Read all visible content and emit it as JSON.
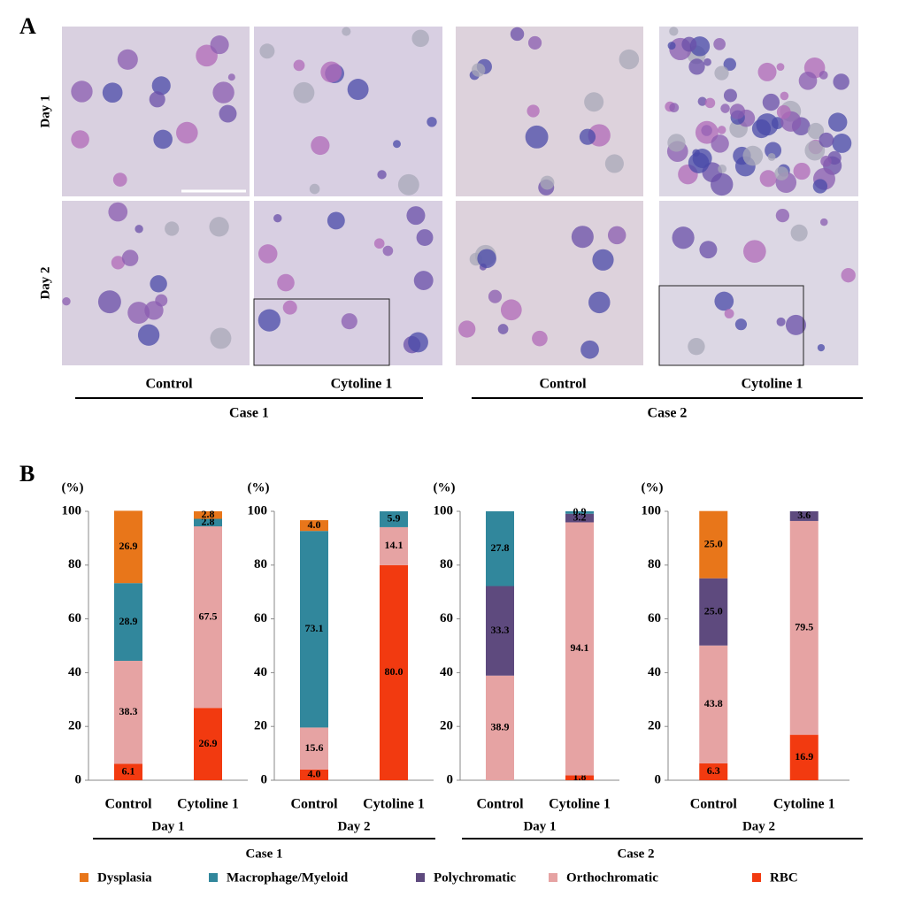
{
  "panel_a": {
    "label": "A",
    "rows": [
      "Day 1",
      "Day 2"
    ],
    "columns": [
      "Control",
      "Cytoline 1",
      "Control",
      "Cytoline 1"
    ],
    "cases": [
      "Case 1",
      "Case 2"
    ]
  },
  "panel_b": {
    "label": "B",
    "cases": [
      "Case 1",
      "Case 2"
    ]
  },
  "chart_data": [
    {
      "type": "stacked_bar",
      "group": "Day 1",
      "y_label": "(%)",
      "categories": [
        "Control",
        "Cytoline 1"
      ],
      "ylim": [
        0,
        100
      ],
      "yticks": [
        0,
        20,
        40,
        60,
        80,
        100
      ],
      "series": [
        {
          "name": "RBC",
          "color": "#f23a10",
          "values": [
            6.1,
            26.9
          ],
          "value_labels": [
            "6.1",
            "26.9"
          ]
        },
        {
          "name": "Orthochromatic",
          "color": "#e6a3a3",
          "values": [
            38.3,
            67.5
          ],
          "value_labels": [
            "38.3",
            "67.5"
          ]
        },
        {
          "name": "Polychromatic",
          "color": "#5e4a7e",
          "values": [
            null,
            null
          ],
          "value_labels": [
            null,
            null
          ]
        },
        {
          "name": "Macrophage/Myeloid",
          "color": "#31879c",
          "values": [
            28.9,
            2.8
          ],
          "value_labels": [
            "28.9",
            "2.8"
          ]
        },
        {
          "name": "Dysplasia",
          "color": "#e8761a",
          "values": [
            26.9,
            2.8
          ],
          "value_labels": [
            "26.9",
            "2.8"
          ]
        }
      ]
    },
    {
      "type": "stacked_bar",
      "group": "Day 2",
      "y_label": "(%)",
      "categories": [
        "Control",
        "Cytoline 1"
      ],
      "ylim": [
        0,
        100
      ],
      "yticks": [
        0,
        20,
        40,
        60,
        80,
        100
      ],
      "series": [
        {
          "name": "RBC",
          "color": "#f23a10",
          "values": [
            4.0,
            80.0
          ],
          "value_labels": [
            "4.0",
            "80.0"
          ]
        },
        {
          "name": "Orthochromatic",
          "color": "#e6a3a3",
          "values": [
            15.6,
            14.1
          ],
          "value_labels": [
            "15.6",
            "14.1"
          ]
        },
        {
          "name": "Polychromatic",
          "color": "#5e4a7e",
          "values": [
            null,
            null
          ],
          "value_labels": [
            null,
            null
          ]
        },
        {
          "name": "Macrophage/Myeloid",
          "color": "#31879c",
          "values": [
            73.1,
            5.9
          ],
          "value_labels": [
            "73.1",
            "5.9"
          ]
        },
        {
          "name": "Dysplasia",
          "color": "#e8761a",
          "values": [
            4.0,
            null
          ],
          "value_labels": [
            "4.0",
            null
          ]
        }
      ]
    },
    {
      "type": "stacked_bar",
      "group": "Day 1",
      "y_label": "(%)",
      "categories": [
        "Control",
        "Cytoline 1"
      ],
      "ylim": [
        0,
        100
      ],
      "yticks": [
        0,
        20,
        40,
        60,
        80,
        100
      ],
      "series": [
        {
          "name": "RBC",
          "color": "#f23a10",
          "values": [
            null,
            1.8
          ],
          "value_labels": [
            null,
            "1.8"
          ]
        },
        {
          "name": "Orthochromatic",
          "color": "#e6a3a3",
          "values": [
            38.9,
            94.1
          ],
          "value_labels": [
            "38.9",
            "94.1"
          ]
        },
        {
          "name": "Polychromatic",
          "color": "#5e4a7e",
          "values": [
            33.3,
            3.2
          ],
          "value_labels": [
            "33.3",
            "3.2"
          ]
        },
        {
          "name": "Macrophage/Myeloid",
          "color": "#31879c",
          "values": [
            27.8,
            0.9
          ],
          "value_labels": [
            "27.8",
            "0.9"
          ]
        },
        {
          "name": "Dysplasia",
          "color": "#e8761a",
          "values": [
            null,
            null
          ],
          "value_labels": [
            null,
            null
          ]
        }
      ]
    },
    {
      "type": "stacked_bar",
      "group": "Day 2",
      "y_label": "(%)",
      "categories": [
        "Control",
        "Cytoline 1"
      ],
      "ylim": [
        0,
        100
      ],
      "yticks": [
        0,
        20,
        40,
        60,
        80,
        100
      ],
      "series": [
        {
          "name": "RBC",
          "color": "#f23a10",
          "values": [
            6.3,
            16.9
          ],
          "value_labels": [
            "6.3",
            "16.9"
          ]
        },
        {
          "name": "Orthochromatic",
          "color": "#e6a3a3",
          "values": [
            43.8,
            79.5
          ],
          "value_labels": [
            "43.8",
            "79.5"
          ]
        },
        {
          "name": "Polychromatic",
          "color": "#5e4a7e",
          "values": [
            25.0,
            3.6
          ],
          "value_labels": [
            "25.0",
            "3.6"
          ]
        },
        {
          "name": "Macrophage/Myeloid",
          "color": "#31879c",
          "values": [
            null,
            null
          ],
          "value_labels": [
            null,
            null
          ]
        },
        {
          "name": "Dysplasia",
          "color": "#e8761a",
          "values": [
            25.0,
            null
          ],
          "value_labels": [
            "25.0",
            null
          ]
        }
      ]
    }
  ]
}
